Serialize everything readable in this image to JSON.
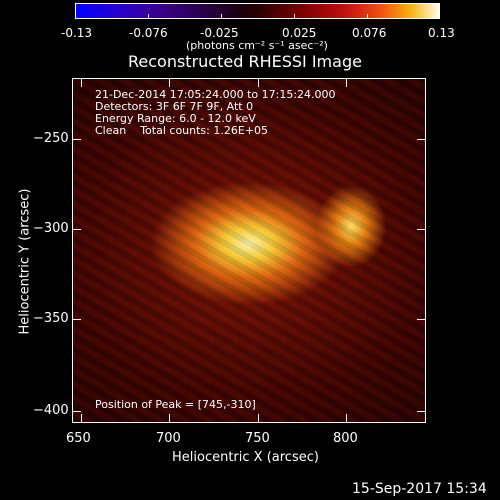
{
  "colorbar": {
    "tick_labels": [
      "-0.13",
      "-0.076",
      "-0.025",
      "0.025",
      "0.076",
      "0.13"
    ],
    "units": "(photons cm⁻² s⁻¹ asec⁻²)"
  },
  "title": "Reconstructed RHESSI Image",
  "info": {
    "line1": "21-Dec-2014 17:05:24.000 to 17:15:24.000",
    "line2": "Detectors: 3F 6F 7F 9F, Att 0",
    "line3": "Energy Range: 6.0 - 12.0 keV",
    "line4": "Clean    Total counts: 1.26E+05"
  },
  "peak_text": "Position of Peak = [745,-310]",
  "axes": {
    "xlabel": "Heliocentric X (arcsec)",
    "ylabel": "Heliocentric Y (arcsec)",
    "x_ticks": [
      "650",
      "700",
      "750",
      "800"
    ],
    "y_ticks": [
      "−250",
      "−300",
      "−350",
      "−400"
    ]
  },
  "footer_date": "15-Sep-2017 15:34",
  "colors": {
    "background": "#000000",
    "foreground": "#ffffff"
  }
}
